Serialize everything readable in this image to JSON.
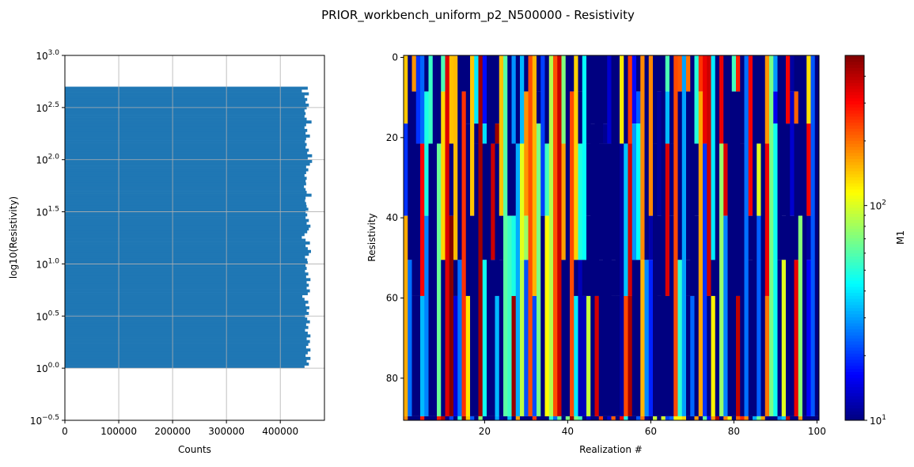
{
  "figure_title": "PRIOR_workbench_uniform_p2_N500000 - Resistivity",
  "chart_data": [
    {
      "type": "bar",
      "orientation": "horizontal",
      "xlabel": "Counts",
      "ylabel": "log10(Resistivity)",
      "xlim": [
        0,
        482000
      ],
      "ylim": [
        -0.5,
        3.0
      ],
      "grid": true,
      "color": "#1f77b4",
      "xticks": [
        0,
        100000,
        200000,
        300000,
        400000
      ],
      "xtick_labels": [
        "0",
        "100000",
        "200000",
        "300000",
        "400000"
      ],
      "yticks": [
        -0.5,
        0.0,
        0.5,
        1.0,
        1.5,
        2.0,
        2.5,
        3.0
      ],
      "ytick_labels": [
        {
          "base": "10",
          "exp": "−0.5"
        },
        {
          "base": "10",
          "exp": "0.0"
        },
        {
          "base": "10",
          "exp": "0.5"
        },
        {
          "base": "10",
          "exp": "1.0"
        },
        {
          "base": "10",
          "exp": "1.5"
        },
        {
          "base": "10",
          "exp": "2.0"
        },
        {
          "base": "10",
          "exp": "2.5"
        },
        {
          "base": "10",
          "exp": "3.0"
        }
      ],
      "bin_range": [
        0.0,
        2.7
      ],
      "values": [
        445000,
        453000,
        449000,
        456000,
        447000,
        451000,
        456000,
        448000,
        452000,
        455000,
        449000,
        456000,
        451000,
        446000,
        452000,
        448000,
        455000,
        450000,
        446000,
        453000,
        449000,
        454000,
        447000,
        452000,
        445000,
        441000,
        451000,
        455000,
        449000,
        453000,
        449000,
        456000,
        448000,
        452000,
        446000,
        449000,
        447000,
        451000,
        450000,
        446000,
        453000,
        457000,
        451000,
        447000,
        455000,
        447000,
        440000,
        445000,
        450000,
        453000,
        456000,
        449000,
        453000,
        447000,
        450000,
        447000,
        452000,
        449000,
        448000,
        446000,
        447000,
        458000,
        449000,
        447000,
        444000,
        448000,
        447000,
        449000,
        445000,
        448000,
        452000,
        448000,
        455000,
        459000,
        451000,
        459000,
        450000,
        453000,
        447000,
        449000,
        446000,
        448000,
        455000,
        447000,
        450000,
        445000,
        448000,
        458000,
        449000,
        445000,
        447000,
        445000,
        449000,
        453000,
        447000,
        450000,
        445000,
        453000,
        440000,
        451000
      ],
      "x_labelled": true
    },
    {
      "type": "heatmap",
      "xlabel": "Realization #",
      "ylabel": "Resistivity",
      "xlim": [
        0.5,
        100.5
      ],
      "ylim": [
        90.5,
        -0.5
      ],
      "xticks": [
        20,
        40,
        60,
        80,
        100
      ],
      "yticks": [
        0,
        20,
        40,
        60,
        80
      ],
      "rows": 91,
      "cols": 100,
      "colormap": "jet",
      "color_scale": "log",
      "clim": [
        10,
        500
      ],
      "colorbar": {
        "label": "M1",
        "ticks": [
          10,
          100
        ],
        "tick_labels": [
          {
            "base": "10",
            "exp": "1"
          },
          {
            "base": "10",
            "exp": "2"
          }
        ],
        "minor_ticks": [
          20,
          30,
          40,
          50,
          60,
          70,
          80,
          90,
          200,
          300,
          400
        ]
      }
    }
  ]
}
